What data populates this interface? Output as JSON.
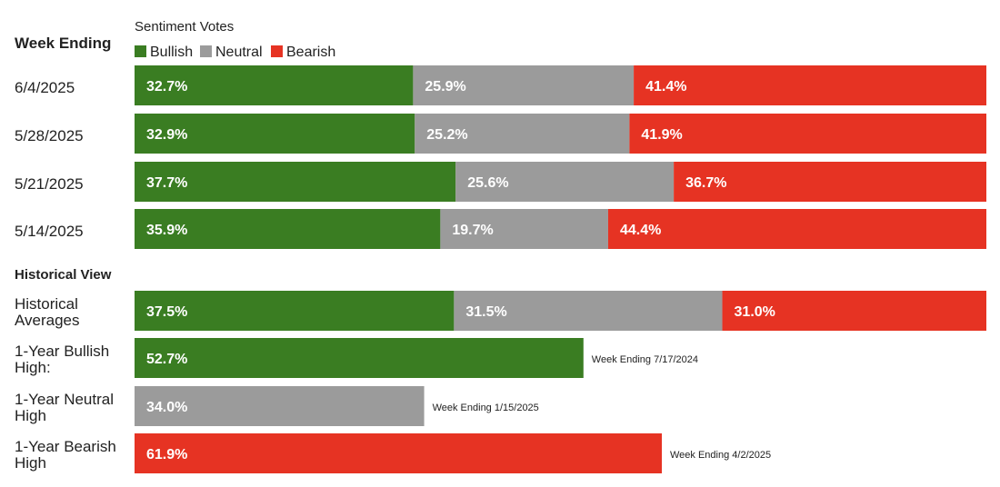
{
  "chart_data": {
    "type": "bar",
    "stacked": true,
    "orientation": "horizontal",
    "title": "Sentiment Votes",
    "row_header": "Week Ending",
    "section_header": "Historical View",
    "legend": [
      {
        "name": "Bullish",
        "color": "#3a7d22"
      },
      {
        "name": "Neutral",
        "color": "#9b9b9b"
      },
      {
        "name": "Bearish",
        "color": "#e63323"
      }
    ],
    "xlim": [
      0,
      100
    ],
    "weekly": [
      {
        "label": "6/4/2025",
        "values": [
          32.7,
          25.9,
          41.4
        ],
        "texts": [
          "32.7%",
          "25.9%",
          "41.4%"
        ]
      },
      {
        "label": "5/28/2025",
        "values": [
          32.9,
          25.2,
          41.9
        ],
        "texts": [
          "32.9%",
          "25.2%",
          "41.9%"
        ]
      },
      {
        "label": "5/21/2025",
        "values": [
          37.7,
          25.6,
          36.7
        ],
        "texts": [
          "37.7%",
          "25.6%",
          "36.7%"
        ]
      },
      {
        "label": "5/14/2025",
        "values": [
          35.9,
          19.7,
          44.4
        ],
        "texts": [
          "35.9%",
          "19.7%",
          "44.4%"
        ]
      }
    ],
    "historical": [
      {
        "label_lines": [
          "Historical",
          "Averages"
        ],
        "segments": [
          {
            "series": 0,
            "value": 37.5,
            "text": "37.5%"
          },
          {
            "series": 1,
            "value": 31.5,
            "text": "31.5%"
          },
          {
            "series": 2,
            "value": 31.0,
            "text": "31.0%"
          }
        ],
        "note": ""
      },
      {
        "label_lines": [
          "1-Year Bullish",
          "High:"
        ],
        "segments": [
          {
            "series": 0,
            "value": 52.7,
            "text": "52.7%"
          }
        ],
        "note": "Week Ending 7/17/2024"
      },
      {
        "label_lines": [
          "1-Year Neutral",
          "High"
        ],
        "segments": [
          {
            "series": 1,
            "value": 34.0,
            "text": "34.0%"
          }
        ],
        "note": "Week Ending 1/15/2025"
      },
      {
        "label_lines": [
          "1-Year Bearish",
          "High"
        ],
        "segments": [
          {
            "series": 2,
            "value": 61.9,
            "text": "61.9%"
          }
        ],
        "note": "Week Ending 4/2/2025"
      }
    ]
  }
}
